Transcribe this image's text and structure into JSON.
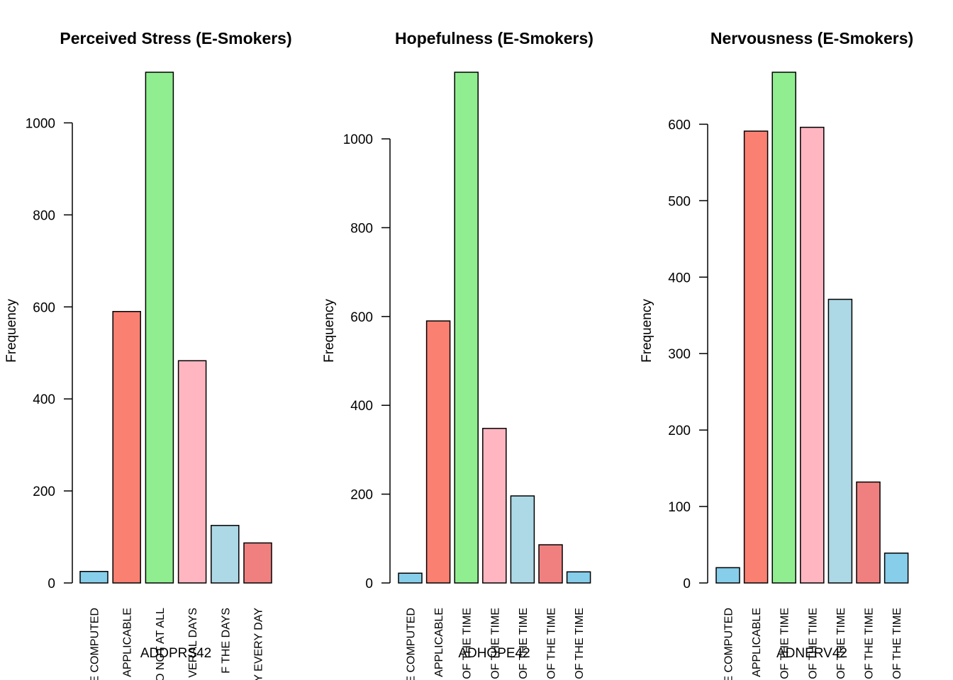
{
  "chart_data": [
    {
      "type": "bar",
      "title": "Perceived Stress (E-Smokers)",
      "xlabel": "ADDPRS42",
      "ylabel": "Frequency",
      "categories": [
        "E COMPUTED",
        "APPLICABLE",
        "O NOT AT ALL",
        "VERAL DAYS",
        "F THE DAYS",
        "Y EVERY DAY"
      ],
      "values": [
        25,
        590,
        1110,
        483,
        125,
        87
      ],
      "colors": [
        "#87CEEB",
        "#FA8072",
        "#90EE90",
        "#FFB6C1",
        "#ADD8E6",
        "#F08080"
      ],
      "ylim": [
        0,
        1110
      ],
      "yticks": [
        0,
        200,
        400,
        600,
        800,
        1000
      ],
      "grid": false
    },
    {
      "type": "bar",
      "title": "Hopefulness (E-Smokers)",
      "xlabel": "ADHOPE42",
      "ylabel": "Frequency",
      "categories": [
        "E COMPUTED",
        "APPLICABLE",
        "OF THE TIME",
        "OF THE TIME",
        "OF THE TIME",
        "OF THE TIME",
        "OF THE TIME"
      ],
      "values": [
        22,
        590,
        1150,
        348,
        196,
        86,
        25
      ],
      "colors": [
        "#87CEEB",
        "#FA8072",
        "#90EE90",
        "#FFB6C1",
        "#ADD8E6",
        "#F08080",
        "#87CEEB"
      ],
      "ylim": [
        0,
        1150
      ],
      "yticks": [
        0,
        200,
        400,
        600,
        800,
        1000
      ],
      "grid": false
    },
    {
      "type": "bar",
      "title": "Nervousness (E-Smokers)",
      "xlabel": "ADNERV42",
      "ylabel": "Frequency",
      "categories": [
        "E COMPUTED",
        "APPLICABLE",
        "OF THE TIME",
        "OF THE TIME",
        "OF THE TIME",
        "OF THE TIME",
        "OF THE TIME"
      ],
      "values": [
        20,
        591,
        668,
        596,
        371,
        132,
        39
      ],
      "colors": [
        "#87CEEB",
        "#FA8072",
        "#90EE90",
        "#FFB6C1",
        "#ADD8E6",
        "#F08080",
        "#87CEEB"
      ],
      "ylim": [
        0,
        668
      ],
      "yticks": [
        0,
        100,
        200,
        300,
        400,
        500,
        600
      ],
      "grid": false
    }
  ]
}
